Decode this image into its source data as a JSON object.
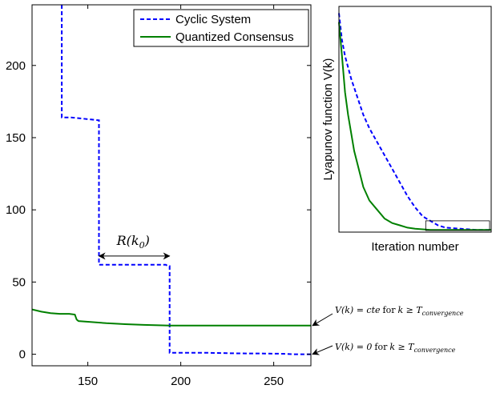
{
  "chart_data": [
    {
      "type": "line",
      "xlim": [
        120,
        270
      ],
      "ylim": [
        -8,
        242
      ],
      "xticks": [
        150,
        200,
        250
      ],
      "yticks": [
        0,
        50,
        100,
        150,
        200
      ],
      "grid": false,
      "legend_position": "top-right",
      "series": [
        {
          "name": "Cyclic System",
          "color": "#0000ff",
          "style": "dashed",
          "x": [
            136,
            136,
            141,
            156,
            156,
            160,
            170,
            181,
            192,
            193,
            194,
            194,
            200,
            215,
            230,
            245,
            255,
            260,
            270
          ],
          "y": [
            242,
            164,
            164,
            162,
            62,
            62,
            62,
            62,
            62,
            61,
            61,
            1,
            1,
            1,
            0.6,
            0.5,
            0.3,
            0,
            0
          ]
        },
        {
          "name": "Quantized Consensus",
          "color": "#008000",
          "style": "solid",
          "x": [
            120,
            125,
            130,
            135,
            140,
            143,
            144,
            145,
            150,
            160,
            170,
            180,
            190,
            194,
            200,
            220,
            240,
            260,
            270
          ],
          "y": [
            31,
            29.5,
            28.5,
            28,
            28,
            27.5,
            24,
            23,
            22.5,
            21.5,
            20.8,
            20.3,
            20,
            19.8,
            19.8,
            19.8,
            19.8,
            19.8,
            19.8
          ]
        }
      ],
      "annotations": {
        "interval_label": "R(k",
        "interval_sub": "0",
        "interval_close": ")",
        "interval_from": 156,
        "interval_to": 194,
        "interval_y": 68,
        "cte_prefix": "V(k) = cte",
        "cte_for": "for",
        "cte_cond": "k ≥ T",
        "cte_sub": "convergence",
        "cte_target_y": 19.8,
        "zero_prefix": "V(k) = 0",
        "zero_for": "for",
        "zero_cond": "k ≥ T",
        "zero_sub": "convergence",
        "zero_target_y": 0
      }
    },
    {
      "type": "line",
      "xlabel": "Iteration number",
      "ylabel": "Lyapunov function V(k)",
      "xlim": [
        0,
        1
      ],
      "ylim": [
        0,
        1
      ],
      "ticks": false,
      "series": [
        {
          "color": "#0000ff",
          "style": "dashed",
          "x": [
            0,
            0.02,
            0.04,
            0.08,
            0.12,
            0.16,
            0.2,
            0.25,
            0.3,
            0.35,
            0.4,
            0.45,
            0.5,
            0.55,
            0.6,
            0.65,
            0.7,
            0.8,
            0.9,
            1
          ],
          "y": [
            0.97,
            0.85,
            0.78,
            0.68,
            0.6,
            0.52,
            0.46,
            0.4,
            0.34,
            0.28,
            0.22,
            0.16,
            0.11,
            0.07,
            0.05,
            0.03,
            0.02,
            0.015,
            0.01,
            0.01
          ]
        },
        {
          "color": "#008000",
          "style": "solid",
          "x": [
            0,
            0.02,
            0.04,
            0.06,
            0.08,
            0.1,
            0.13,
            0.16,
            0.2,
            0.25,
            0.3,
            0.35,
            0.4,
            0.45,
            0.5,
            0.6,
            0.7,
            0.8,
            0.9,
            1
          ],
          "y": [
            0.93,
            0.78,
            0.62,
            0.52,
            0.44,
            0.36,
            0.28,
            0.2,
            0.14,
            0.1,
            0.06,
            0.04,
            0.03,
            0.02,
            0.015,
            0.01,
            0.01,
            0.01,
            0.01,
            0.01
          ]
        }
      ],
      "zoom_box": {
        "x": [
          0.57,
          1
        ],
        "y": [
          0,
          0.05
        ]
      }
    }
  ]
}
